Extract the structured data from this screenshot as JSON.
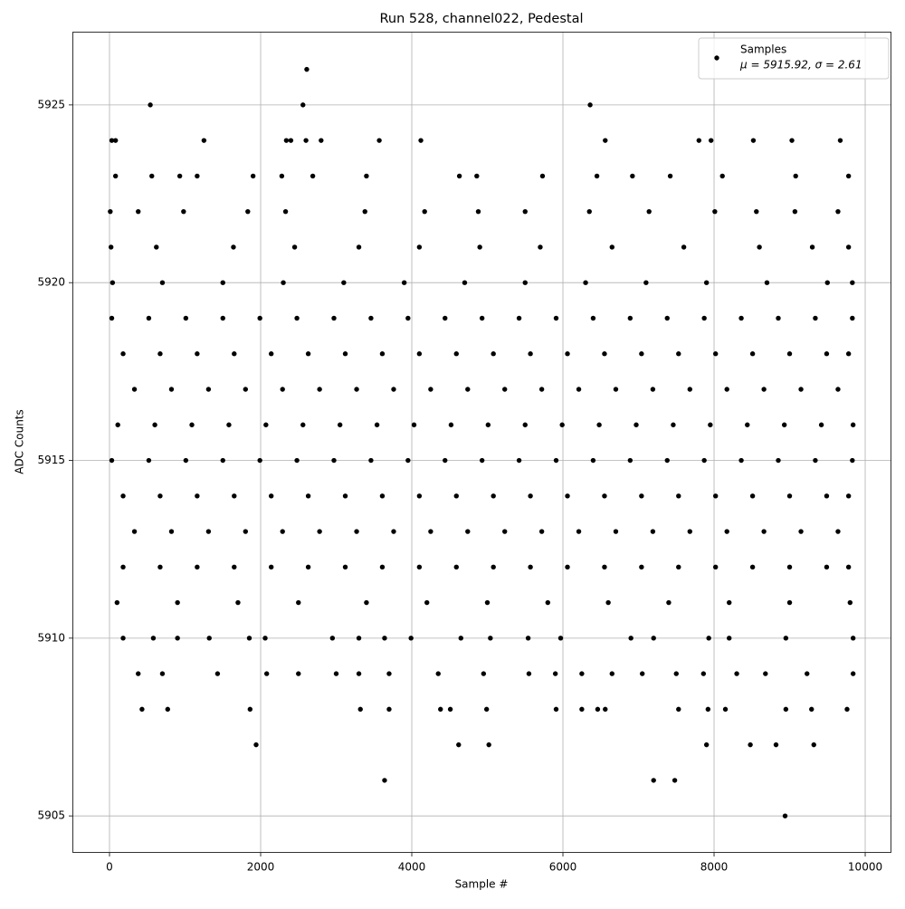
{
  "chart_data": {
    "type": "scatter",
    "title": "Run 528, channel022, Pedestal",
    "xlabel": "Sample #",
    "ylabel": "ADC Counts",
    "xlim": [
      -491,
      10347
    ],
    "ylim": [
      5903.96,
      5927.06
    ],
    "xticks": [
      0,
      2000,
      4000,
      6000,
      8000,
      10000
    ],
    "yticks": [
      5905,
      5910,
      5915,
      5920,
      5925
    ],
    "grid": true,
    "legend": "upper right",
    "legend_note": "μ = 5915.92, σ = 2.61",
    "series": [
      {
        "name": "Samples",
        "color": "#000000",
        "x": [
          30,
          520,
          1010,
          1500,
          1990,
          2480,
          2970,
          3460,
          3950,
          4440,
          4930,
          5420,
          5910,
          6400,
          6890,
          7380,
          7870,
          8360,
          8850,
          9340,
          9830,
          180,
          670,
          1160,
          1650,
          2140,
          2630,
          3120,
          3610,
          4100,
          4590,
          5080,
          5570,
          6060,
          6550,
          7040,
          7530,
          8020,
          8510,
          9000,
          9490,
          9780,
          330,
          820,
          1310,
          1800,
          2290,
          2780,
          3270,
          3760,
          4250,
          4740,
          5230,
          5720,
          6210,
          6700,
          7190,
          7680,
          8170,
          8660,
          9150,
          9640,
          110,
          600,
          1090,
          1580,
          2070,
          2560,
          3050,
          3540,
          4030,
          4520,
          5010,
          5500,
          5990,
          6480,
          6970,
          7460,
          7950,
          8440,
          8930,
          9420,
          9840,
          30,
          520,
          1010,
          1500,
          1990,
          2480,
          2970,
          3460,
          3950,
          4440,
          4930,
          5420,
          5910,
          6400,
          6890,
          7380,
          7870,
          8360,
          8850,
          9340,
          9830,
          180,
          670,
          1160,
          1650,
          2140,
          2630,
          3120,
          3610,
          4100,
          4590,
          5080,
          5570,
          6060,
          6550,
          7040,
          7530,
          8020,
          8510,
          9000,
          9490,
          9780,
          330,
          820,
          1310,
          1800,
          2290,
          2780,
          3270,
          3760,
          4250,
          4740,
          5230,
          5720,
          6210,
          6700,
          7190,
          7680,
          8170,
          8660,
          9150,
          9640,
          180,
          670,
          1160,
          1650,
          2140,
          2630,
          3120,
          3610,
          4100,
          4590,
          5080,
          5570,
          6060,
          6550,
          7040,
          7530,
          8020,
          8510,
          9000,
          9490,
          9780,
          40,
          700,
          1500,
          2300,
          3100,
          3900,
          4700,
          5500,
          6300,
          7100,
          7900,
          8700,
          9500,
          9830,
          20,
          620,
          1640,
          2450,
          3300,
          4100,
          4900,
          5700,
          6650,
          7600,
          8600,
          9300,
          9780,
          100,
          900,
          1700,
          2500,
          3400,
          4200,
          5000,
          5800,
          6600,
          7400,
          8200,
          9000,
          9800,
          10,
          380,
          980,
          1830,
          2330,
          3380,
          4170,
          4880,
          5500,
          6350,
          7140,
          8010,
          8560,
          9070,
          9640,
          80,
          560,
          930,
          1160,
          1900,
          2280,
          2690,
          3400,
          4630,
          4860,
          5730,
          6450,
          6920,
          7420,
          8110,
          9080,
          9780,
          180,
          580,
          900,
          1320,
          1850,
          2060,
          2950,
          3300,
          3640,
          3990,
          4650,
          5040,
          5540,
          5970,
          6900,
          7200,
          7930,
          8200,
          8950,
          9840,
          380,
          700,
          1430,
          2080,
          2500,
          3000,
          3300,
          3700,
          4350,
          4950,
          5550,
          5900,
          6250,
          6650,
          7050,
          7500,
          7860,
          8300,
          8680,
          9230,
          9840,
          430,
          770,
          1860,
          3320,
          3700,
          4380,
          4510,
          4990,
          5910,
          6250,
          6460,
          6560,
          7530,
          7920,
          8150,
          8950,
          9290,
          9760,
          30,
          80,
          1250,
          2340,
          2400,
          2600,
          2800,
          3570,
          4120,
          6560,
          7800,
          7960,
          8520,
          9030,
          9670,
          540,
          2560,
          2610,
          6360,
          8940,
          3640,
          7200,
          7480,
          1940,
          4620,
          5020,
          7900,
          8480,
          8820,
          9320
        ],
        "values": [
          5919,
          5919,
          5919,
          5919,
          5919,
          5919,
          5919,
          5919,
          5919,
          5919,
          5919,
          5919,
          5919,
          5919,
          5919,
          5919,
          5919,
          5919,
          5919,
          5919,
          5919,
          5918,
          5918,
          5918,
          5918,
          5918,
          5918,
          5918,
          5918,
          5918,
          5918,
          5918,
          5918,
          5918,
          5918,
          5918,
          5918,
          5918,
          5918,
          5918,
          5918,
          5918,
          5917,
          5917,
          5917,
          5917,
          5917,
          5917,
          5917,
          5917,
          5917,
          5917,
          5917,
          5917,
          5917,
          5917,
          5917,
          5917,
          5917,
          5917,
          5917,
          5917,
          5916,
          5916,
          5916,
          5916,
          5916,
          5916,
          5916,
          5916,
          5916,
          5916,
          5916,
          5916,
          5916,
          5916,
          5916,
          5916,
          5916,
          5916,
          5916,
          5916,
          5916,
          5915,
          5915,
          5915,
          5915,
          5915,
          5915,
          5915,
          5915,
          5915,
          5915,
          5915,
          5915,
          5915,
          5915,
          5915,
          5915,
          5915,
          5915,
          5915,
          5915,
          5915,
          5914,
          5914,
          5914,
          5914,
          5914,
          5914,
          5914,
          5914,
          5914,
          5914,
          5914,
          5914,
          5914,
          5914,
          5914,
          5914,
          5914,
          5914,
          5914,
          5914,
          5914,
          5913,
          5913,
          5913,
          5913,
          5913,
          5913,
          5913,
          5913,
          5913,
          5913,
          5913,
          5913,
          5913,
          5913,
          5913,
          5913,
          5913,
          5913,
          5913,
          5913,
          5912,
          5912,
          5912,
          5912,
          5912,
          5912,
          5912,
          5912,
          5912,
          5912,
          5912,
          5912,
          5912,
          5912,
          5912,
          5912,
          5912,
          5912,
          5912,
          5912,
          5912,
          5920,
          5920,
          5920,
          5920,
          5920,
          5920,
          5920,
          5920,
          5920,
          5920,
          5920,
          5920,
          5920,
          5920,
          5921,
          5921,
          5921,
          5921,
          5921,
          5921,
          5921,
          5921,
          5921,
          5921,
          5921,
          5921,
          5921,
          5911,
          5911,
          5911,
          5911,
          5911,
          5911,
          5911,
          5911,
          5911,
          5911,
          5911,
          5911,
          5911,
          5922,
          5922,
          5922,
          5922,
          5922,
          5922,
          5922,
          5922,
          5922,
          5922,
          5922,
          5922,
          5922,
          5922,
          5922,
          5923,
          5923,
          5923,
          5923,
          5923,
          5923,
          5923,
          5923,
          5923,
          5923,
          5923,
          5923,
          5923,
          5923,
          5923,
          5923,
          5923,
          5910,
          5910,
          5910,
          5910,
          5910,
          5910,
          5910,
          5910,
          5910,
          5910,
          5910,
          5910,
          5910,
          5910,
          5910,
          5910,
          5910,
          5910,
          5910,
          5910,
          5909,
          5909,
          5909,
          5909,
          5909,
          5909,
          5909,
          5909,
          5909,
          5909,
          5909,
          5909,
          5909,
          5909,
          5909,
          5909,
          5909,
          5909,
          5909,
          5909,
          5909,
          5908,
          5908,
          5908,
          5908,
          5908,
          5908,
          5908,
          5908,
          5908,
          5908,
          5908,
          5908,
          5908,
          5908,
          5908,
          5908,
          5908,
          5908,
          5924,
          5924,
          5924,
          5924,
          5924,
          5924,
          5924,
          5924,
          5924,
          5924,
          5924,
          5924,
          5924,
          5924,
          5924,
          5925,
          5925,
          5926,
          5925,
          5905,
          5906,
          5906,
          5906,
          5907,
          5907,
          5907,
          5907,
          5907,
          5907,
          5907
        ]
      }
    ]
  }
}
